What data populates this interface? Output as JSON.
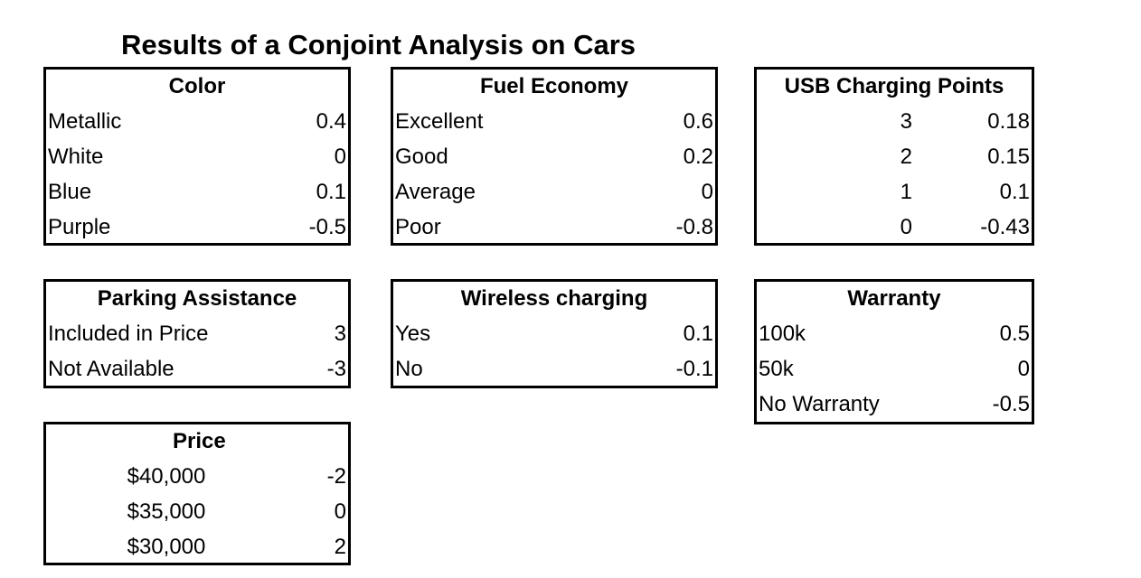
{
  "title": "Results of a Conjoint Analysis on Cars",
  "tables": [
    {
      "id": "color",
      "header": "Color",
      "rows": [
        {
          "label": "Metallic",
          "value": "0.4"
        },
        {
          "label": "White",
          "value": "0"
        },
        {
          "label": "Blue",
          "value": "0.1"
        },
        {
          "label": "Purple",
          "value": "-0.5"
        }
      ]
    },
    {
      "id": "fuel-economy",
      "header": "Fuel Economy",
      "rows": [
        {
          "label": "Excellent",
          "value": "0.6"
        },
        {
          "label": "Good",
          "value": "0.2"
        },
        {
          "label": "Average",
          "value": "0"
        },
        {
          "label": "Poor",
          "value": "-0.8"
        }
      ]
    },
    {
      "id": "usb-charging",
      "header": "USB Charging Points",
      "rows": [
        {
          "label": "3",
          "value": "0.18"
        },
        {
          "label": "2",
          "value": "0.15"
        },
        {
          "label": "1",
          "value": "0.1"
        },
        {
          "label": "0",
          "value": "-0.43"
        }
      ]
    },
    {
      "id": "parking-assistance",
      "header": "Parking Assistance",
      "rows": [
        {
          "label": "Included in Price",
          "value": "3"
        },
        {
          "label": "Not Available",
          "value": "-3"
        }
      ]
    },
    {
      "id": "wireless-charging",
      "header": "Wireless charging",
      "rows": [
        {
          "label": "Yes",
          "value": "0.1"
        },
        {
          "label": "No",
          "value": "-0.1"
        }
      ]
    },
    {
      "id": "warranty",
      "header": "Warranty",
      "rows": [
        {
          "label": "100k",
          "value": "0.5"
        },
        {
          "label": "50k",
          "value": "0"
        },
        {
          "label": "No Warranty",
          "value": "-0.5"
        }
      ]
    },
    {
      "id": "price",
      "header": "Price",
      "rows": [
        {
          "label": "$40,000",
          "value": "-2"
        },
        {
          "label": "$35,000",
          "value": "0"
        },
        {
          "label": "$30,000",
          "value": "2"
        }
      ]
    }
  ]
}
